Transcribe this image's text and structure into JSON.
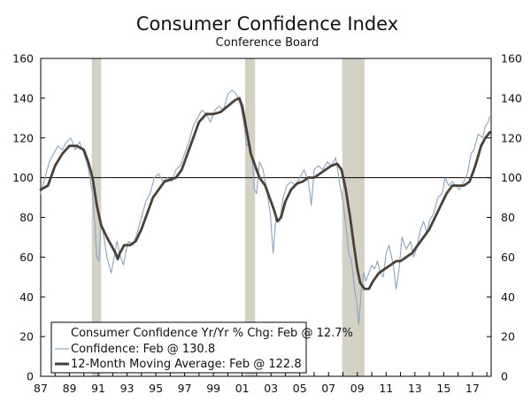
{
  "chart_data": {
    "type": "line",
    "title": "Consumer Confidence Index",
    "subtitle": "Conference Board",
    "xlabel": "",
    "ylabel": "",
    "xlim": [
      1987,
      2018.3
    ],
    "ylim": [
      0,
      160
    ],
    "y_ticks": [
      0,
      20,
      40,
      60,
      80,
      100,
      120,
      140,
      160
    ],
    "x_tick_values": [
      1987,
      1989,
      1991,
      1993,
      1995,
      1997,
      1999,
      2001,
      2003,
      2005,
      2007,
      2009,
      2011,
      2013,
      2015,
      2017
    ],
    "x_tick_labels": [
      "87",
      "89",
      "91",
      "93",
      "95",
      "97",
      "99",
      "01",
      "03",
      "05",
      "07",
      "09",
      "11",
      "13",
      "15",
      "17"
    ],
    "reference_line": 100,
    "recessions": [
      {
        "start": 1990.55,
        "end": 1991.2
      },
      {
        "start": 2001.2,
        "end": 2001.9
      },
      {
        "start": 2007.95,
        "end": 2009.5
      }
    ],
    "legend": [
      {
        "label": "Consumer Confidence Yr/Yr % Chg: Feb @ 12.7%",
        "style": "none"
      },
      {
        "label": "Confidence: Feb @ 130.8",
        "style": "thin"
      },
      {
        "label": "12-Month Moving Average: Feb @ 122.8",
        "style": "thick"
      }
    ],
    "series": [
      {
        "name": "Confidence",
        "color": "#8aa4c4",
        "points": [
          [
            1987.0,
            92
          ],
          [
            1987.3,
            100
          ],
          [
            1987.6,
            108
          ],
          [
            1987.9,
            112
          ],
          [
            1988.2,
            116
          ],
          [
            1988.5,
            114
          ],
          [
            1988.8,
            118
          ],
          [
            1989.1,
            120
          ],
          [
            1989.4,
            114
          ],
          [
            1989.7,
            118
          ],
          [
            1990.0,
            112
          ],
          [
            1990.3,
            105
          ],
          [
            1990.6,
            92
          ],
          [
            1990.75,
            78
          ],
          [
            1990.9,
            60
          ],
          [
            1991.05,
            58
          ],
          [
            1991.2,
            78
          ],
          [
            1991.35,
            72
          ],
          [
            1991.6,
            60
          ],
          [
            1991.9,
            52
          ],
          [
            1992.1,
            60
          ],
          [
            1992.3,
            68
          ],
          [
            1992.55,
            60
          ],
          [
            1992.75,
            56
          ],
          [
            1992.95,
            64
          ],
          [
            1993.1,
            68
          ],
          [
            1993.4,
            66
          ],
          [
            1993.7,
            72
          ],
          [
            1994.0,
            80
          ],
          [
            1994.3,
            88
          ],
          [
            1994.6,
            92
          ],
          [
            1994.9,
            100
          ],
          [
            1995.2,
            102
          ],
          [
            1995.5,
            98
          ],
          [
            1995.8,
            100
          ],
          [
            1996.1,
            98
          ],
          [
            1996.4,
            104
          ],
          [
            1996.7,
            106
          ],
          [
            1997.0,
            112
          ],
          [
            1997.3,
            118
          ],
          [
            1997.6,
            126
          ],
          [
            1997.9,
            130
          ],
          [
            1998.2,
            134
          ],
          [
            1998.5,
            132
          ],
          [
            1998.8,
            128
          ],
          [
            1999.1,
            134
          ],
          [
            1999.4,
            136
          ],
          [
            1999.7,
            134
          ],
          [
            2000.0,
            142
          ],
          [
            2000.3,
            144
          ],
          [
            2000.6,
            142
          ],
          [
            2000.9,
            136
          ],
          [
            2001.1,
            128
          ],
          [
            2001.3,
            116
          ],
          [
            2001.5,
            118
          ],
          [
            2001.7,
            110
          ],
          [
            2001.85,
            94
          ],
          [
            2002.0,
            92
          ],
          [
            2002.2,
            108
          ],
          [
            2002.45,
            104
          ],
          [
            2002.7,
            94
          ],
          [
            2002.95,
            82
          ],
          [
            2003.15,
            62
          ],
          [
            2003.35,
            80
          ],
          [
            2003.6,
            78
          ],
          [
            2003.85,
            90
          ],
          [
            2004.1,
            96
          ],
          [
            2004.4,
            98
          ],
          [
            2004.7,
            96
          ],
          [
            2005.0,
            100
          ],
          [
            2005.3,
            104
          ],
          [
            2005.6,
            98
          ],
          [
            2005.8,
            86
          ],
          [
            2006.0,
            104
          ],
          [
            2006.3,
            106
          ],
          [
            2006.6,
            104
          ],
          [
            2006.9,
            108
          ],
          [
            2007.2,
            106
          ],
          [
            2007.5,
            110
          ],
          [
            2007.8,
            96
          ],
          [
            2008.0,
            88
          ],
          [
            2008.2,
            76
          ],
          [
            2008.4,
            62
          ],
          [
            2008.6,
            58
          ],
          [
            2008.8,
            44
          ],
          [
            2008.95,
            38
          ],
          [
            2009.1,
            26
          ],
          [
            2009.3,
            46
          ],
          [
            2009.45,
            52
          ],
          [
            2009.6,
            48
          ],
          [
            2009.8,
            52
          ],
          [
            2010.0,
            56
          ],
          [
            2010.2,
            54
          ],
          [
            2010.4,
            58
          ],
          [
            2010.6,
            52
          ],
          [
            2010.8,
            50
          ],
          [
            2011.0,
            62
          ],
          [
            2011.2,
            66
          ],
          [
            2011.5,
            56
          ],
          [
            2011.7,
            44
          ],
          [
            2011.9,
            54
          ],
          [
            2012.1,
            70
          ],
          [
            2012.4,
            64
          ],
          [
            2012.7,
            68
          ],
          [
            2012.9,
            60
          ],
          [
            2013.1,
            64
          ],
          [
            2013.4,
            74
          ],
          [
            2013.6,
            78
          ],
          [
            2013.85,
            72
          ],
          [
            2014.0,
            78
          ],
          [
            2014.3,
            82
          ],
          [
            2014.6,
            90
          ],
          [
            2014.9,
            92
          ],
          [
            2015.1,
            100
          ],
          [
            2015.35,
            96
          ],
          [
            2015.6,
            98
          ],
          [
            2015.85,
            96
          ],
          [
            2016.1,
            94
          ],
          [
            2016.4,
            98
          ],
          [
            2016.65,
            102
          ],
          [
            2016.9,
            112
          ],
          [
            2017.1,
            114
          ],
          [
            2017.4,
            122
          ],
          [
            2017.7,
            120
          ],
          [
            2017.9,
            126
          ],
          [
            2018.1,
            128
          ],
          [
            2018.2,
            130.8
          ]
        ]
      },
      {
        "name": "12-Month Moving Average",
        "color": "#4a4038",
        "points": [
          [
            1987.0,
            94
          ],
          [
            1987.5,
            96
          ],
          [
            1988.0,
            106
          ],
          [
            1988.5,
            112
          ],
          [
            1989.0,
            116
          ],
          [
            1989.5,
            116
          ],
          [
            1990.0,
            114
          ],
          [
            1990.3,
            108
          ],
          [
            1990.6,
            100
          ],
          [
            1990.9,
            86
          ],
          [
            1991.2,
            76
          ],
          [
            1991.6,
            70
          ],
          [
            1991.9,
            66
          ],
          [
            1992.2,
            62
          ],
          [
            1992.35,
            59
          ],
          [
            1992.5,
            62
          ],
          [
            1992.8,
            66
          ],
          [
            1993.2,
            66
          ],
          [
            1993.6,
            68
          ],
          [
            1994.0,
            74
          ],
          [
            1994.4,
            82
          ],
          [
            1994.8,
            90
          ],
          [
            1995.2,
            94
          ],
          [
            1995.6,
            98
          ],
          [
            1996.0,
            99
          ],
          [
            1996.4,
            100
          ],
          [
            1996.8,
            104
          ],
          [
            1997.2,
            112
          ],
          [
            1997.6,
            120
          ],
          [
            1998.0,
            128
          ],
          [
            1998.5,
            132
          ],
          [
            1999.0,
            132
          ],
          [
            1999.5,
            133
          ],
          [
            2000.0,
            136
          ],
          [
            2000.5,
            139
          ],
          [
            2000.8,
            140
          ],
          [
            2001.0,
            136
          ],
          [
            2001.3,
            124
          ],
          [
            2001.6,
            112
          ],
          [
            2001.9,
            106
          ],
          [
            2002.2,
            100
          ],
          [
            2002.6,
            96
          ],
          [
            2002.9,
            90
          ],
          [
            2003.2,
            84
          ],
          [
            2003.45,
            78
          ],
          [
            2003.7,
            80
          ],
          [
            2004.0,
            88
          ],
          [
            2004.4,
            94
          ],
          [
            2004.8,
            97
          ],
          [
            2005.2,
            98
          ],
          [
            2005.6,
            100
          ],
          [
            2006.0,
            100
          ],
          [
            2006.4,
            102
          ],
          [
            2006.8,
            104
          ],
          [
            2007.2,
            106
          ],
          [
            2007.6,
            107
          ],
          [
            2007.9,
            104
          ],
          [
            2008.2,
            94
          ],
          [
            2008.5,
            80
          ],
          [
            2008.8,
            64
          ],
          [
            2009.0,
            54
          ],
          [
            2009.2,
            47
          ],
          [
            2009.5,
            44
          ],
          [
            2009.8,
            44
          ],
          [
            2010.1,
            48
          ],
          [
            2010.5,
            52
          ],
          [
            2010.9,
            54
          ],
          [
            2011.3,
            56
          ],
          [
            2011.7,
            58
          ],
          [
            2012.0,
            58
          ],
          [
            2012.4,
            60
          ],
          [
            2012.8,
            62
          ],
          [
            2013.2,
            66
          ],
          [
            2013.6,
            70
          ],
          [
            2014.0,
            74
          ],
          [
            2014.4,
            80
          ],
          [
            2014.8,
            86
          ],
          [
            2015.2,
            92
          ],
          [
            2015.6,
            96
          ],
          [
            2016.0,
            96
          ],
          [
            2016.4,
            96
          ],
          [
            2016.8,
            98
          ],
          [
            2017.2,
            106
          ],
          [
            2017.6,
            116
          ],
          [
            2017.9,
            120
          ],
          [
            2018.2,
            122.8
          ]
        ]
      }
    ]
  }
}
